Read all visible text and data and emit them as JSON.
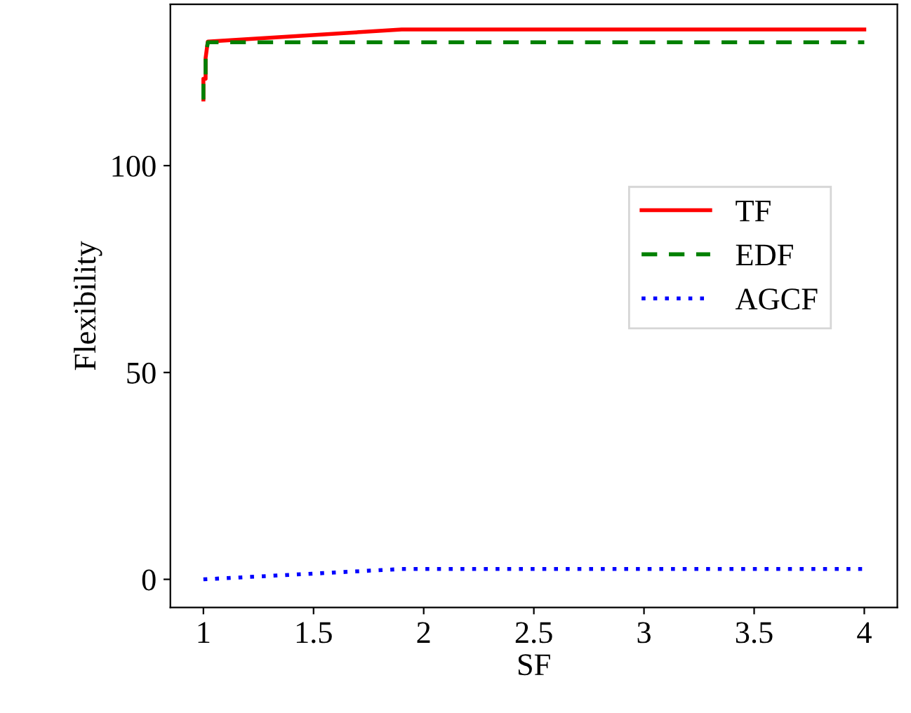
{
  "chart_data": {
    "type": "line",
    "xlabel": "SF",
    "ylabel": "Flexibility",
    "xlim": [
      0.85,
      4.15
    ],
    "ylim": [
      -6.8,
      139
    ],
    "xticks": [
      1,
      1.5,
      2,
      2.5,
      3,
      3.5,
      4
    ],
    "yticks": [
      0,
      50,
      100
    ],
    "grid": false,
    "legend": "right",
    "series": [
      {
        "name": "TF",
        "color": "#ff0000",
        "line_style": "solid",
        "x": [
          1,
          1,
          1.01,
          1.01,
          1.02,
          1.9,
          4
        ],
        "values": [
          116,
          121,
          121,
          126,
          130,
          132.9,
          132.9
        ]
      },
      {
        "name": "EDF",
        "color": "#008000",
        "line_style": "dashed",
        "x": [
          1,
          1,
          1.01,
          1.01,
          1.02,
          4
        ],
        "values": [
          116,
          121,
          121,
          126,
          129.8,
          129.8
        ]
      },
      {
        "name": "AGCF",
        "color": "#0000ff",
        "line_style": "dotted",
        "x": [
          1,
          1.9,
          4
        ],
        "values": [
          0,
          2.5,
          2.5
        ]
      }
    ]
  }
}
